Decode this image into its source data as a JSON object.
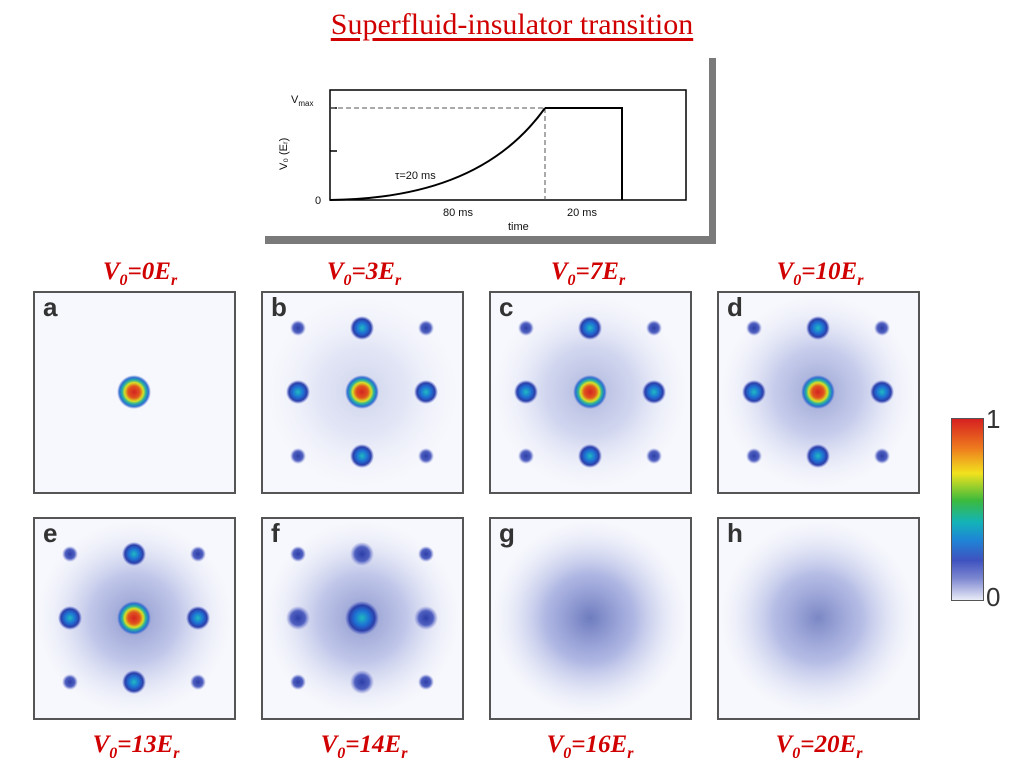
{
  "title": "Superfluid-insulator transition",
  "inset": {
    "y_axis_label": "V₀ (Eᵣ)",
    "vmax_label": "V",
    "vmax_sub": "max",
    "zero_label": "0",
    "tau_label": "τ=20 ms",
    "ramp_label": "80 ms",
    "hold_label": "20 ms",
    "x_axis_label": "time"
  },
  "panels": [
    {
      "letter": "a",
      "label_main": "V",
      "label_sub": "0",
      "label_rest": "=0E",
      "label_sub2": "r",
      "central": 1.0,
      "side": 0.0,
      "diag": 0.0,
      "bg": 0.0
    },
    {
      "letter": "b",
      "label_main": "V",
      "label_sub": "0",
      "label_rest": "=3E",
      "label_sub2": "r",
      "central": 0.95,
      "side": 0.45,
      "diag": 0.08,
      "bg": 0.12
    },
    {
      "letter": "c",
      "label_main": "V",
      "label_sub": "0",
      "label_rest": "=7E",
      "label_sub2": "r",
      "central": 0.9,
      "side": 0.55,
      "diag": 0.18,
      "bg": 0.22
    },
    {
      "letter": "d",
      "label_main": "V",
      "label_sub": "0",
      "label_rest": "=10E",
      "label_sub2": "r",
      "central": 0.85,
      "side": 0.5,
      "diag": 0.22,
      "bg": 0.28
    },
    {
      "letter": "e",
      "label_main": "V",
      "label_sub": "0",
      "label_rest": "=13E",
      "label_sub2": "r",
      "central": 0.8,
      "side": 0.42,
      "diag": 0.2,
      "bg": 0.32
    },
    {
      "letter": "f",
      "label_main": "V",
      "label_sub": "0",
      "label_rest": "=14E",
      "label_sub2": "r",
      "central": 0.55,
      "side": 0.22,
      "diag": 0.12,
      "bg": 0.32
    },
    {
      "letter": "g",
      "label_main": "V",
      "label_sub": "0",
      "label_rest": "=16E",
      "label_sub2": "r",
      "central": 0.0,
      "side": 0.0,
      "diag": 0.0,
      "bg": 0.42
    },
    {
      "letter": "h",
      "label_main": "V",
      "label_sub": "0",
      "label_rest": "=20E",
      "label_sub2": "r",
      "central": 0.0,
      "side": 0.0,
      "diag": 0.0,
      "bg": 0.38
    }
  ],
  "colorbar": {
    "max_label": "1",
    "min_label": "0"
  }
}
